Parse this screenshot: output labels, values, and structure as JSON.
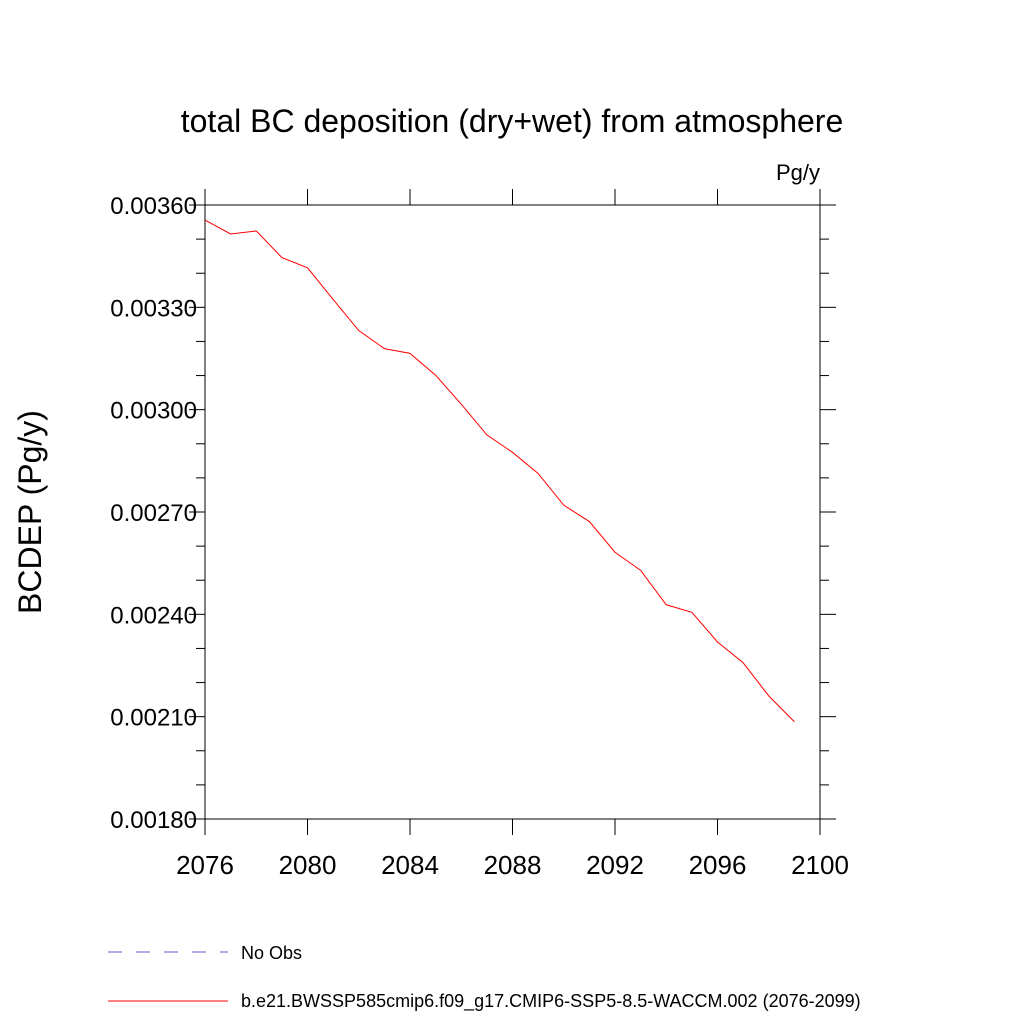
{
  "chart_data": {
    "type": "line",
    "title": "total BC deposition (dry+wet) from atmosphere",
    "units_label": "Pg/y",
    "ylabel": "BCDEP  (Pg/y)",
    "xlabel": "",
    "xlim": [
      2076,
      2100
    ],
    "ylim": [
      0.0018,
      0.0036
    ],
    "x_ticks": [
      2076,
      2080,
      2084,
      2088,
      2092,
      2096,
      2100
    ],
    "x_tick_labels": [
      "2076",
      "2080",
      "2084",
      "2088",
      "2092",
      "2096",
      "2100"
    ],
    "y_ticks": [
      0.0018,
      0.0021,
      0.0024,
      0.0027,
      0.003,
      0.0033,
      0.0036
    ],
    "y_tick_labels": [
      "0.00180",
      "0.00210",
      "0.00240",
      "0.00270",
      "0.00300",
      "0.00330",
      "0.00360"
    ],
    "grid": false,
    "legend_position": "bottom",
    "series": [
      {
        "name": "b.e21.BWSSP585cmip6.f09_g17.CMIP6-SSP5-8.5-WACCM.002 (2076-2099)",
        "color": "#ff0000",
        "style": "solid",
        "x": [
          2076,
          2077,
          2078,
          2079,
          2080,
          2081,
          2082,
          2083,
          2084,
          2085,
          2086,
          2087,
          2088,
          2089,
          2090,
          2091,
          2092,
          2093,
          2094,
          2095,
          2096,
          2097,
          2098,
          2099
        ],
        "values": [
          0.003556,
          0.003515,
          0.003524,
          0.003446,
          0.003416,
          0.003323,
          0.003232,
          0.003179,
          0.003165,
          0.003101,
          0.003016,
          0.002926,
          0.002875,
          0.002813,
          0.00272,
          0.002672,
          0.002582,
          0.002529,
          0.002428,
          0.002406,
          0.002319,
          0.002258,
          0.002161,
          0.002085
        ]
      }
    ],
    "legend": [
      {
        "label": "No Obs",
        "color": "#6a5acd",
        "style": "dashed"
      },
      {
        "label": "b.e21.BWSSP585cmip6.f09_g17.CMIP6-SSP5-8.5-WACCM.002 (2076-2099)",
        "color": "#ff0000",
        "style": "solid"
      }
    ]
  }
}
